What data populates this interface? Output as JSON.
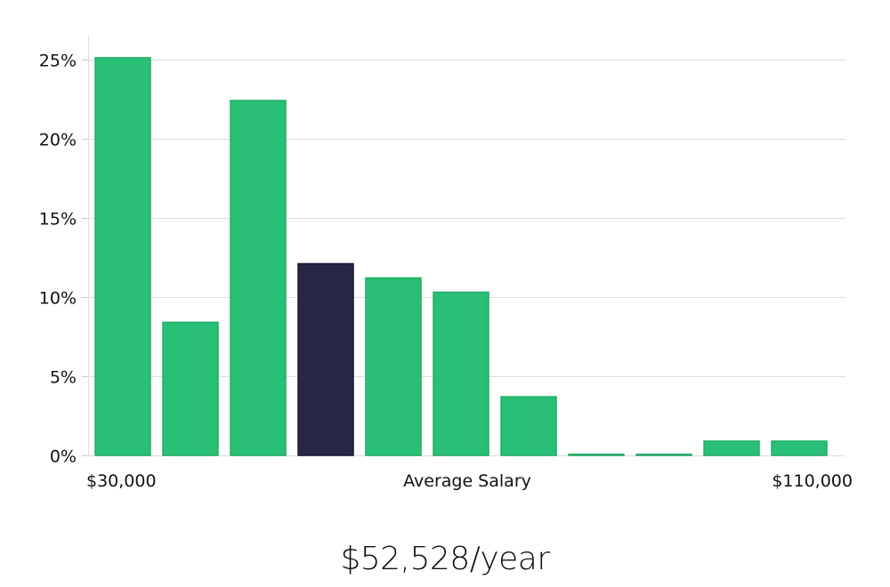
{
  "chart_data": {
    "type": "bar",
    "title": "",
    "xlabel": "Average Salary",
    "ylabel": "",
    "x_range_labels": {
      "min": "$30,000",
      "max": "$110,000"
    },
    "ylim": [
      0,
      26.5
    ],
    "yticks": [
      0,
      5,
      10,
      15,
      20,
      25
    ],
    "ytick_labels": [
      "0%",
      "5%",
      "10%",
      "15%",
      "20%",
      "25%"
    ],
    "values": [
      25.1,
      8.4,
      22.4,
      12.1,
      11.2,
      10.3,
      3.7,
      0.05,
      0.05,
      0.9,
      0.9
    ],
    "highlight_index": 3,
    "grid": true,
    "colors": {
      "bar": "#2abf76",
      "bar_edge": "#20ad66",
      "highlight": "#282645",
      "highlight_edge": "#1a1833",
      "grid": "#dcdcdc",
      "axis": "#dddddd"
    }
  },
  "headline": "$52,528/year"
}
